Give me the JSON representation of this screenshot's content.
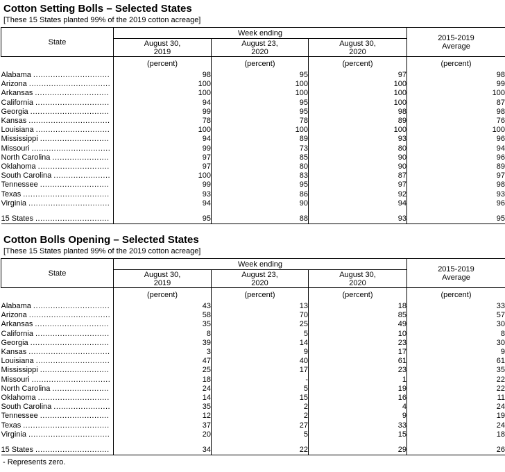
{
  "page": {
    "footnote": "- Represents zero."
  },
  "tables": [
    {
      "title": "Cotton Setting Bolls – Selected States",
      "subtitle": "[These 15 States planted 99% of the 2019 cotton acreage]",
      "headers": {
        "state": "State",
        "week_ending": "Week ending",
        "average": "2015-2019\nAverage",
        "dates": [
          "August 30,\n2019",
          "August 23,\n2020",
          "August 30,\n2020"
        ],
        "unit": "(percent)"
      },
      "rows": [
        {
          "state": "Alabama",
          "values": [
            "98",
            "95",
            "97",
            "98"
          ]
        },
        {
          "state": "Arizona",
          "values": [
            "100",
            "100",
            "100",
            "99"
          ]
        },
        {
          "state": "Arkansas",
          "values": [
            "100",
            "100",
            "100",
            "100"
          ]
        },
        {
          "state": "California",
          "values": [
            "94",
            "95",
            "100",
            "87"
          ]
        },
        {
          "state": "Georgia",
          "values": [
            "99",
            "95",
            "98",
            "98"
          ]
        },
        {
          "state": "Kansas",
          "values": [
            "78",
            "78",
            "89",
            "76"
          ]
        },
        {
          "state": "Louisiana",
          "values": [
            "100",
            "100",
            "100",
            "100"
          ]
        },
        {
          "state": "Mississippi",
          "values": [
            "94",
            "89",
            "93",
            "96"
          ]
        },
        {
          "state": "Missouri",
          "values": [
            "99",
            "73",
            "80",
            "94"
          ]
        },
        {
          "state": "North Carolina",
          "values": [
            "97",
            "85",
            "90",
            "96"
          ]
        },
        {
          "state": "Oklahoma",
          "values": [
            "97",
            "80",
            "90",
            "89"
          ]
        },
        {
          "state": "South Carolina",
          "values": [
            "100",
            "83",
            "87",
            "97"
          ]
        },
        {
          "state": "Tennessee",
          "values": [
            "99",
            "95",
            "97",
            "98"
          ]
        },
        {
          "state": "Texas",
          "values": [
            "93",
            "86",
            "92",
            "93"
          ]
        },
        {
          "state": "Virginia",
          "values": [
            "94",
            "90",
            "94",
            "96"
          ]
        }
      ],
      "total": {
        "state": "15 States",
        "values": [
          "95",
          "88",
          "93",
          "95"
        ]
      }
    },
    {
      "title": "Cotton Bolls Opening – Selected States",
      "subtitle": "[These 15 States planted 99% of the 2019 cotton acreage]",
      "headers": {
        "state": "State",
        "week_ending": "Week ending",
        "average": "2015-2019\nAverage",
        "dates": [
          "August 30,\n2019",
          "August 23,\n2020",
          "August 30,\n2020"
        ],
        "unit": "(percent)"
      },
      "rows": [
        {
          "state": "Alabama",
          "values": [
            "43",
            "13",
            "18",
            "33"
          ]
        },
        {
          "state": "Arizona",
          "values": [
            "58",
            "70",
            "85",
            "57"
          ]
        },
        {
          "state": "Arkansas",
          "values": [
            "35",
            "25",
            "49",
            "30"
          ]
        },
        {
          "state": "California",
          "values": [
            "8",
            "5",
            "10",
            "8"
          ]
        },
        {
          "state": "Georgia",
          "values": [
            "39",
            "14",
            "23",
            "30"
          ]
        },
        {
          "state": "Kansas",
          "values": [
            "3",
            "9",
            "17",
            "9"
          ]
        },
        {
          "state": "Louisiana",
          "values": [
            "47",
            "40",
            "61",
            "61"
          ]
        },
        {
          "state": "Mississippi",
          "values": [
            "25",
            "17",
            "23",
            "35"
          ]
        },
        {
          "state": "Missouri",
          "values": [
            "18",
            "-",
            "1",
            "22"
          ]
        },
        {
          "state": "North Carolina",
          "values": [
            "24",
            "5",
            "19",
            "22"
          ]
        },
        {
          "state": "Oklahoma",
          "values": [
            "14",
            "15",
            "16",
            "11"
          ]
        },
        {
          "state": "South Carolina",
          "values": [
            "35",
            "2",
            "4",
            "24"
          ]
        },
        {
          "state": "Tennessee",
          "values": [
            "12",
            "2",
            "9",
            "19"
          ]
        },
        {
          "state": "Texas",
          "values": [
            "37",
            "27",
            "33",
            "24"
          ]
        },
        {
          "state": "Virginia",
          "values": [
            "20",
            "5",
            "15",
            "18"
          ]
        }
      ],
      "total": {
        "state": "15 States",
        "values": [
          "34",
          "22",
          "29",
          "26"
        ]
      }
    }
  ]
}
